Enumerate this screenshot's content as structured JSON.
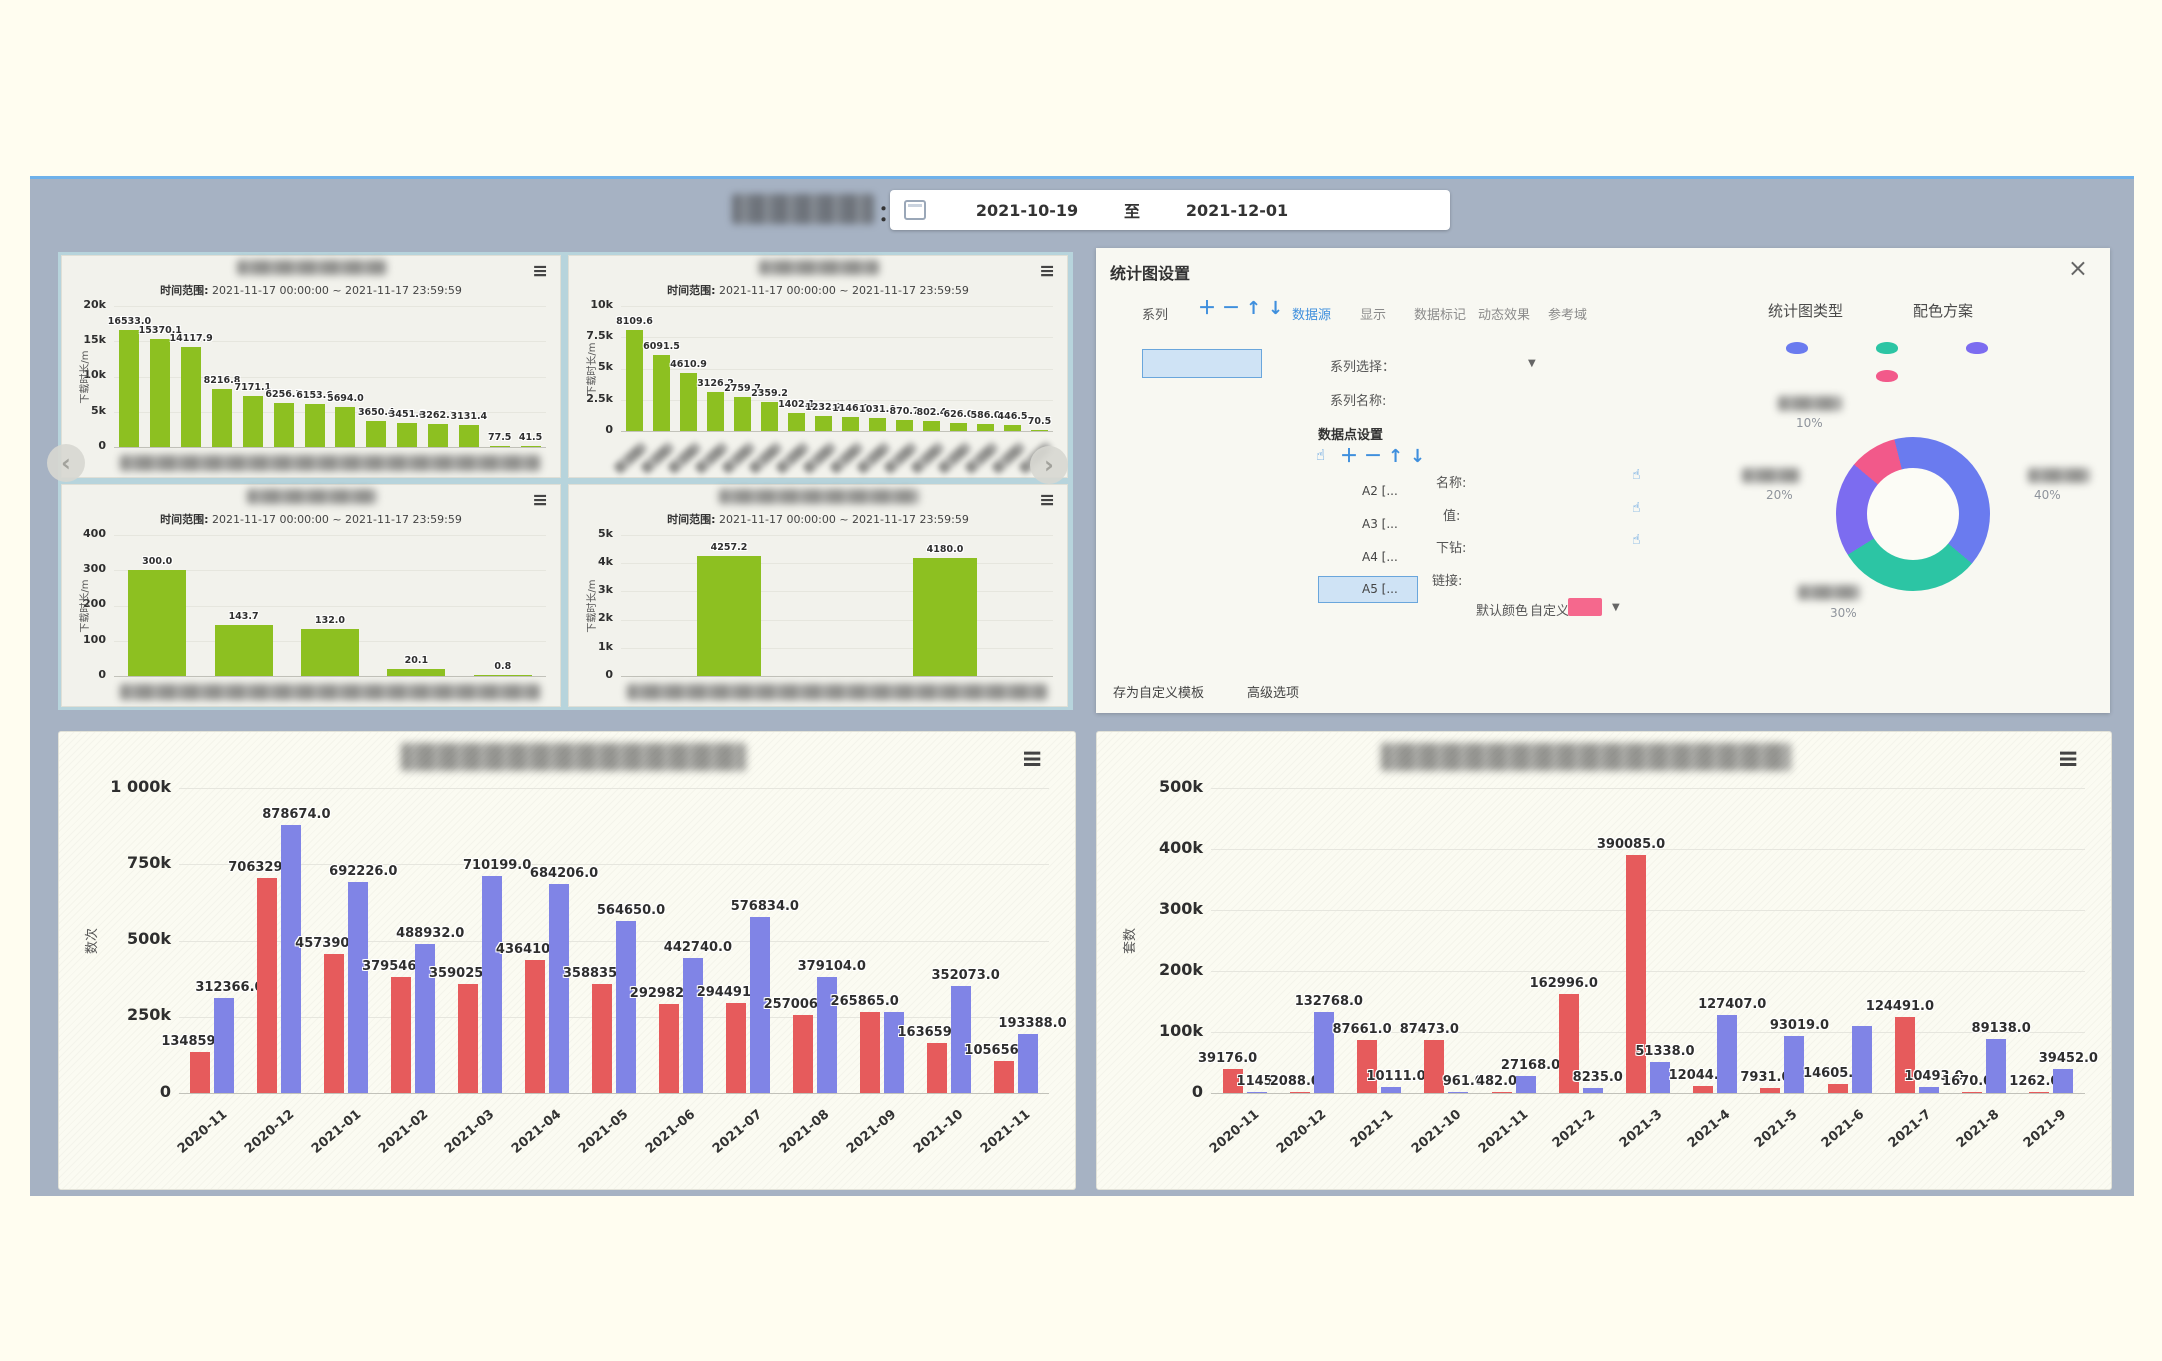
{
  "header": {
    "separator": "：",
    "date_from": "2021-10-19",
    "range_word": "至",
    "date_to": "2021-12-01"
  },
  "icons": {
    "menu": "≡",
    "close": "×",
    "caret": "▼",
    "prev": "‹",
    "next": "›"
  },
  "small_common": {
    "subtitle_label": "时间范围:",
    "subtitle_range": "2021-11-17 00:00:00 ~ 2021-11-17 23:59:59"
  },
  "settings": {
    "title": "统计图设置",
    "series_label": "系列",
    "toolbar": [
      "＋",
      "－",
      "↑",
      "↓"
    ],
    "tabs": [
      {
        "label": "数据源",
        "active": true
      },
      {
        "label": "显示"
      },
      {
        "label": "数据标记"
      },
      {
        "label": "动态效果"
      },
      {
        "label": "参考域"
      }
    ],
    "series_select_label": "系列选择：",
    "series_name_label": "系列名称:",
    "datapoints_title": "数据点设置",
    "dp_toolbar": [
      "☝",
      "＋",
      "－",
      "↑",
      "↓"
    ],
    "items": [
      {
        "label": "A2 [..."
      },
      {
        "label": "A3 [..."
      },
      {
        "label": "A4 [..."
      },
      {
        "label": "A5 [...",
        "selected": true
      }
    ],
    "fields": {
      "name_label": "名称:",
      "value_label": "值:",
      "drill_label": "下钻:",
      "link_label": "链接:"
    },
    "default_color_label": "默认颜色",
    "custom_label": "自定义:",
    "swatch_color": "#f5688d",
    "footer_links": [
      "存为自定义模板",
      "高级选项"
    ],
    "chart_type_label": "统计图类型",
    "color_scheme_label": "配色方案"
  },
  "chart_data": [
    {
      "type": "bar",
      "title": "(redacted)",
      "subtitle": "时间范围: 2021-11-17 00:00:00 ~ 2021-11-17 23:59:59",
      "ylabel": "下载时长/m",
      "color": "#8dc021",
      "ylim": [
        0,
        20000
      ],
      "yticks": [
        {
          "label": "20k",
          "v": 20000
        },
        {
          "label": "15k",
          "v": 15000
        },
        {
          "label": "10k",
          "v": 10000
        },
        {
          "label": "5k",
          "v": 5000
        },
        {
          "label": "0",
          "v": 0
        }
      ],
      "values": [
        16533.0,
        15370.1,
        14117.9,
        8216.8,
        7171.1,
        6256.5,
        6153.6,
        5694.0,
        3650.4,
        3451.6,
        3262.7,
        3131.4,
        77.5,
        41.5
      ],
      "labels": [
        "16533.0",
        "15370.1",
        "14117.9",
        "8216.8",
        "7171.1",
        "6256.5",
        "6153.6",
        "5694.0",
        "3650.4",
        "3451.6",
        "3262.7",
        "3131.4",
        "77.5",
        "41.5"
      ],
      "x_labels": "redacted-strip"
    },
    {
      "type": "bar",
      "title": "(redacted)",
      "subtitle": "时间范围: 2021-11-17 00:00:00 ~ 2021-11-17 23:59:59",
      "ylabel": "下载时长/m",
      "color": "#8dc021",
      "ylim": [
        0,
        10000
      ],
      "yticks": [
        {
          "label": "10k",
          "v": 10000
        },
        {
          "label": "7.5k",
          "v": 7500
        },
        {
          "label": "5k",
          "v": 5000
        },
        {
          "label": "2.5k",
          "v": 2500
        },
        {
          "label": "0",
          "v": 0
        }
      ],
      "values": [
        8109.6,
        6091.5,
        4610.9,
        3126.2,
        2759.7,
        2359.2,
        1402.1,
        1232.2,
        1146.0,
        1031.0,
        870.7,
        802.4,
        626.0,
        586.0,
        446.5,
        70.5
      ],
      "labels": [
        "8109.6",
        "6091.5",
        "4610.9",
        "3126.2",
        "2759.7",
        "2359.2",
        "1402.1",
        "1232.2",
        "1146.0",
        "1031.0",
        "870.7",
        "802.4",
        "626.0",
        "586.0",
        "446.5",
        "70.5"
      ],
      "x_labels": "redacted-rotated"
    },
    {
      "type": "bar",
      "title": "(redacted)",
      "subtitle": "时间范围: 2021-11-17 00:00:00 ~ 2021-11-17 23:59:59",
      "ylabel": "下载时长/m",
      "color": "#8dc021",
      "ylim": [
        0,
        400
      ],
      "yticks": [
        {
          "label": "400",
          "v": 400
        },
        {
          "label": "300",
          "v": 300
        },
        {
          "label": "200",
          "v": 200
        },
        {
          "label": "100",
          "v": 100
        },
        {
          "label": "0",
          "v": 0
        }
      ],
      "values": [
        300.0,
        143.7,
        132.0,
        20.1,
        0.8
      ],
      "labels": [
        "300.0",
        "143.7",
        "132.0",
        "20.1",
        "0.8"
      ],
      "x_labels": "redacted-strip"
    },
    {
      "type": "bar",
      "title": "(redacted)",
      "subtitle": "时间范围: 2021-11-17 00:00:00 ~ 2021-11-17 23:59:59",
      "ylabel": "下载时长/m",
      "color": "#8dc021",
      "ylim": [
        0,
        5000
      ],
      "yticks": [
        {
          "label": "5k",
          "v": 5000
        },
        {
          "label": "4k",
          "v": 4000
        },
        {
          "label": "3k",
          "v": 3000
        },
        {
          "label": "2k",
          "v": 2000
        },
        {
          "label": "1k",
          "v": 1000
        },
        {
          "label": "0",
          "v": 0
        }
      ],
      "values": [
        4257.2,
        4180.0
      ],
      "labels": [
        "4257.2",
        "4180.0"
      ],
      "x_labels": "redacted-strip"
    },
    {
      "type": "grouped-bar",
      "title": "(redacted)",
      "ylabel": "数次",
      "ylim": [
        0,
        1000000
      ],
      "yticks": [
        {
          "label": "1 000k",
          "v": 1000000
        },
        {
          "label": "750k",
          "v": 750000
        },
        {
          "label": "500k",
          "v": 500000
        },
        {
          "label": "250k",
          "v": 250000
        },
        {
          "label": "0",
          "v": 0
        }
      ],
      "categories": [
        "2020-11",
        "2020-12",
        "2021-01",
        "2021-02",
        "2021-03",
        "2021-04",
        "2021-05",
        "2021-06",
        "2021-07",
        "2021-08",
        "2021-09",
        "2021-10",
        "2021-11"
      ],
      "series": [
        {
          "name": "red-series",
          "color": "#e65b5c",
          "values": [
            134859,
            706329,
            457390,
            379546,
            359025,
            436410,
            358835,
            292982,
            294491,
            257006,
            265865,
            163659,
            105656
          ],
          "labels": [
            "134859.0",
            "706329.0",
            "457390.0",
            "379546.0",
            "359025.0",
            "436410.0",
            "358835.0",
            "292982.0",
            "294491.0",
            "257006.0",
            "265865.0",
            "163659.0",
            "105656.0"
          ]
        },
        {
          "name": "blue-series",
          "color": "#8084e6",
          "values": [
            312366,
            878674,
            692226,
            488932,
            710199,
            684206,
            564650,
            442740,
            576834,
            379104,
            265865,
            352073,
            193388
          ],
          "labels": [
            "312366.0",
            "878674.0",
            "692226.0",
            "488932.0",
            "710199.0",
            "684206.0",
            "564650.0",
            "442740.0",
            "576834.0",
            "379104.0",
            "",
            "352073.0",
            "193388.0"
          ]
        }
      ]
    },
    {
      "type": "grouped-bar",
      "title": "(redacted)",
      "ylabel": "套数",
      "ylim": [
        0,
        500000
      ],
      "yticks": [
        {
          "label": "500k",
          "v": 500000
        },
        {
          "label": "400k",
          "v": 400000
        },
        {
          "label": "300k",
          "v": 300000
        },
        {
          "label": "200k",
          "v": 200000
        },
        {
          "label": "100k",
          "v": 100000
        },
        {
          "label": "0",
          "v": 0
        }
      ],
      "categories": [
        "2020-11",
        "2020-12",
        "2021-1",
        "2021-10",
        "2021-11",
        "2021-2",
        "2021-3",
        "2021-4",
        "2021-5",
        "2021-6",
        "2021-7",
        "2021-8",
        "2021-9"
      ],
      "series": [
        {
          "name": "red-series",
          "color": "#e65b5c",
          "values": [
            39176,
            2088,
            87661,
            87473,
            482,
            162996,
            390085,
            12044,
            7931,
            14605,
            124491,
            1670,
            1262
          ],
          "labels": [
            "39176.0",
            "2088.0",
            "87661.0",
            "87473.0",
            "482.0",
            "162996.0",
            "390085.0",
            "12044.0",
            "7931.0",
            "14605.0",
            "124491.0",
            "1670.0",
            "1262.0"
          ]
        },
        {
          "name": "blue-series",
          "color": "#8084e6",
          "values": [
            1145,
            132768,
            10111,
            961,
            27168,
            8235,
            51338,
            127407,
            93019,
            110000,
            10493,
            89138,
            39452
          ],
          "labels": [
            "1145.0",
            "132768.0",
            "10111.0",
            "961.0",
            "27168.0",
            "8235.0",
            "51338.0",
            "127407.0",
            "93019.0",
            "",
            "10493.0",
            "89138.0",
            "39452.0"
          ]
        }
      ]
    },
    {
      "type": "donut",
      "start_deg": -50,
      "slices": [
        {
          "pct": 10,
          "pct_label": "10%",
          "color": "#f2598a",
          "position": "top"
        },
        {
          "pct": 40,
          "pct_label": "40%",
          "color": "#6a7bef",
          "position": "right"
        },
        {
          "pct": 30,
          "pct_label": "30%",
          "color": "#2cc5a4",
          "position": "bottom"
        },
        {
          "pct": 20,
          "pct_label": "20%",
          "color": "#7c6cf0",
          "position": "left"
        }
      ]
    }
  ]
}
